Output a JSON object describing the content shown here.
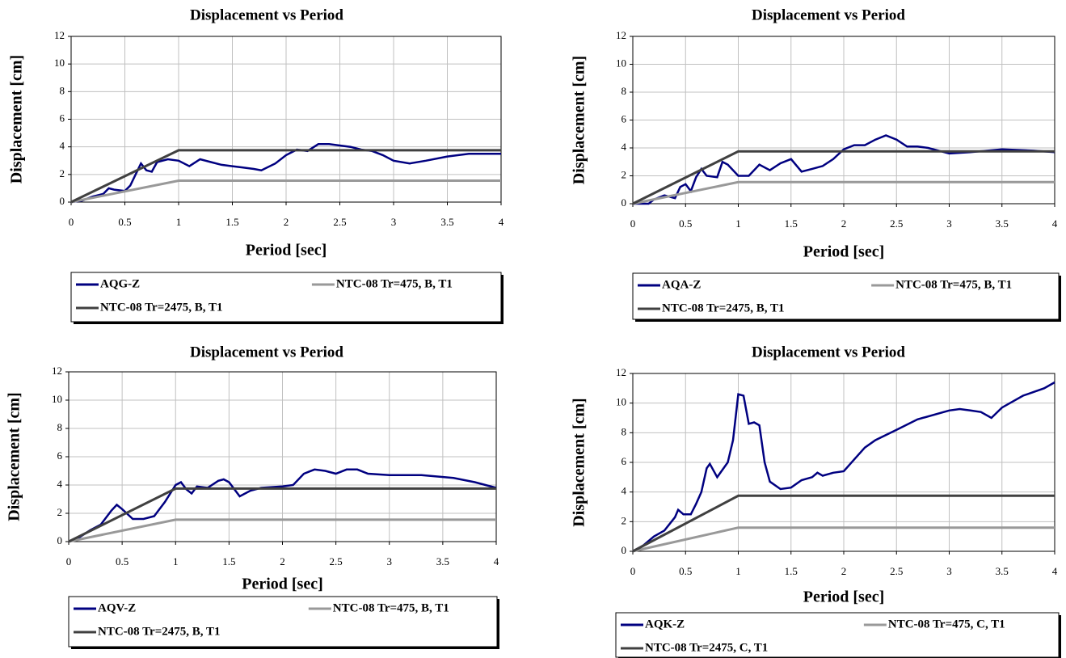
{
  "chart_data": [
    {
      "type": "line",
      "title": "Displacement vs Period",
      "xlabel": "Period [sec]",
      "ylabel": "Displacement [cm]",
      "xlim": [
        0,
        4
      ],
      "ylim": [
        0,
        12
      ],
      "xticks": [
        0,
        0.5,
        1,
        1.5,
        2,
        2.5,
        3,
        3.5,
        4
      ],
      "yticks": [
        0,
        2,
        4,
        6,
        8,
        10,
        12
      ],
      "grid": true,
      "series": [
        {
          "name": "AQG-Z",
          "color": "#000080",
          "x": [
            0,
            0.1,
            0.2,
            0.3,
            0.35,
            0.4,
            0.5,
            0.55,
            0.6,
            0.65,
            0.7,
            0.75,
            0.8,
            0.9,
            1.0,
            1.1,
            1.2,
            1.3,
            1.4,
            1.5,
            1.6,
            1.7,
            1.77,
            1.9,
            2.0,
            2.1,
            2.2,
            2.3,
            2.4,
            2.5,
            2.6,
            2.7,
            2.8,
            2.9,
            3.0,
            3.15,
            3.3,
            3.5,
            3.7,
            4.0
          ],
          "values": [
            0,
            0.1,
            0.4,
            0.6,
            1.0,
            0.9,
            0.8,
            1.2,
            2.0,
            2.8,
            2.3,
            2.2,
            2.9,
            3.1,
            3.0,
            2.6,
            3.1,
            2.9,
            2.7,
            2.6,
            2.5,
            2.4,
            2.3,
            2.8,
            3.4,
            3.8,
            3.7,
            4.2,
            4.2,
            4.1,
            4.0,
            3.8,
            3.7,
            3.4,
            3.0,
            2.8,
            3.0,
            3.3,
            3.5,
            3.5
          ]
        },
        {
          "name": "NTC-08 Tr=475, B, T1",
          "color": "#999999",
          "x": [
            0,
            1,
            4
          ],
          "values": [
            0,
            1.55,
            1.55
          ]
        },
        {
          "name": "NTC-08 Tr=2475, B, T1",
          "color": "#404040",
          "x": [
            0,
            1,
            4
          ],
          "values": [
            0,
            3.75,
            3.75
          ]
        }
      ]
    },
    {
      "type": "line",
      "title": "Displacement vs Period",
      "xlabel": "Period [sec]",
      "ylabel": "Displacement [cm]",
      "xlim": [
        0,
        4
      ],
      "ylim": [
        0,
        12
      ],
      "xticks": [
        0,
        0.5,
        1,
        1.5,
        2,
        2.5,
        3,
        3.5,
        4
      ],
      "yticks": [
        0,
        2,
        4,
        6,
        8,
        10,
        12
      ],
      "grid": true,
      "series": [
        {
          "name": "AQA-Z",
          "color": "#000080",
          "x": [
            0,
            0.15,
            0.2,
            0.3,
            0.4,
            0.45,
            0.5,
            0.55,
            0.6,
            0.65,
            0.7,
            0.8,
            0.85,
            0.9,
            1.0,
            1.1,
            1.2,
            1.3,
            1.4,
            1.5,
            1.6,
            1.7,
            1.8,
            1.9,
            2.0,
            2.1,
            2.2,
            2.3,
            2.4,
            2.5,
            2.6,
            2.7,
            2.8,
            2.9,
            3.0,
            3.2,
            3.5,
            3.8,
            4.0
          ],
          "values": [
            0,
            0,
            0.3,
            0.6,
            0.4,
            1.2,
            1.4,
            0.9,
            1.9,
            2.5,
            2.0,
            1.9,
            3.0,
            2.8,
            2.0,
            2.0,
            2.8,
            2.4,
            2.9,
            3.2,
            2.3,
            2.5,
            2.7,
            3.2,
            3.9,
            4.2,
            4.2,
            4.6,
            4.9,
            4.6,
            4.1,
            4.1,
            4.0,
            3.8,
            3.6,
            3.7,
            3.9,
            3.8,
            3.7
          ]
        },
        {
          "name": "NTC-08 Tr=475, B, T1",
          "color": "#999999",
          "x": [
            0,
            1,
            4
          ],
          "values": [
            0,
            1.55,
            1.55
          ]
        },
        {
          "name": "NTC-08 Tr=2475, B, T1",
          "color": "#404040",
          "x": [
            0,
            1,
            4
          ],
          "values": [
            0,
            3.75,
            3.75
          ]
        }
      ]
    },
    {
      "type": "line",
      "title": "Displacement vs Period",
      "xlabel": "Period [sec]",
      "ylabel": "Displacement [cm]",
      "xlim": [
        0,
        4
      ],
      "ylim": [
        0,
        12
      ],
      "xticks": [
        0,
        0.5,
        1,
        1.5,
        2,
        2.5,
        3,
        3.5,
        4
      ],
      "yticks": [
        0,
        2,
        4,
        6,
        8,
        10,
        12
      ],
      "grid": true,
      "series": [
        {
          "name": "AQV-Z",
          "color": "#000080",
          "x": [
            0,
            0.1,
            0.2,
            0.3,
            0.4,
            0.45,
            0.5,
            0.6,
            0.7,
            0.8,
            0.9,
            1.0,
            1.05,
            1.1,
            1.15,
            1.2,
            1.3,
            1.4,
            1.45,
            1.5,
            1.6,
            1.7,
            1.8,
            2.0,
            2.1,
            2.2,
            2.3,
            2.4,
            2.5,
            2.6,
            2.7,
            2.8,
            3.0,
            3.3,
            3.6,
            3.8,
            4.0
          ],
          "values": [
            0,
            0.3,
            0.8,
            1.2,
            2.2,
            2.6,
            2.3,
            1.6,
            1.6,
            1.8,
            2.8,
            4.0,
            4.2,
            3.7,
            3.4,
            3.9,
            3.8,
            4.3,
            4.4,
            4.2,
            3.2,
            3.6,
            3.8,
            3.9,
            4.0,
            4.8,
            5.1,
            5.0,
            4.8,
            5.1,
            5.1,
            4.8,
            4.7,
            4.7,
            4.5,
            4.2,
            3.8
          ]
        },
        {
          "name": "NTC-08 Tr=475, B, T1",
          "color": "#999999",
          "x": [
            0,
            1,
            4
          ],
          "values": [
            0,
            1.55,
            1.55
          ]
        },
        {
          "name": "NTC-08 Tr=2475, B, T1",
          "color": "#404040",
          "x": [
            0,
            1,
            4
          ],
          "values": [
            0,
            3.75,
            3.75
          ]
        }
      ]
    },
    {
      "type": "line",
      "title": "Displacement vs Period",
      "xlabel": "Period [sec]",
      "ylabel": "Displacement [cm]",
      "xlim": [
        0,
        4
      ],
      "ylim": [
        0,
        12
      ],
      "xticks": [
        0,
        0.5,
        1,
        1.5,
        2,
        2.5,
        3,
        3.5,
        4
      ],
      "yticks": [
        0,
        2,
        4,
        6,
        8,
        10,
        12
      ],
      "grid": true,
      "series": [
        {
          "name": "AQK-Z",
          "color": "#000080",
          "x": [
            0,
            0.1,
            0.2,
            0.3,
            0.4,
            0.43,
            0.48,
            0.55,
            0.6,
            0.65,
            0.7,
            0.73,
            0.8,
            0.9,
            0.95,
            1.0,
            1.05,
            1.1,
            1.15,
            1.2,
            1.25,
            1.3,
            1.4,
            1.5,
            1.6,
            1.7,
            1.75,
            1.8,
            1.9,
            2.0,
            2.1,
            2.2,
            2.3,
            2.5,
            2.7,
            3.0,
            3.1,
            3.2,
            3.3,
            3.4,
            3.5,
            3.7,
            3.9,
            4.0
          ],
          "values": [
            0,
            0.4,
            1.0,
            1.4,
            2.3,
            2.8,
            2.5,
            2.5,
            3.2,
            4.0,
            5.6,
            5.9,
            5.0,
            6.0,
            7.5,
            10.6,
            10.5,
            8.6,
            8.7,
            8.5,
            6.0,
            4.7,
            4.2,
            4.3,
            4.8,
            5.0,
            5.3,
            5.1,
            5.3,
            5.4,
            6.2,
            7.0,
            7.5,
            8.2,
            8.9,
            9.5,
            9.6,
            9.5,
            9.4,
            9.0,
            9.7,
            10.5,
            11.0,
            11.4
          ]
        },
        {
          "name": "NTC-08 Tr=475, C, T1",
          "color": "#999999",
          "x": [
            0,
            1,
            4
          ],
          "values": [
            0,
            1.6,
            1.6
          ]
        },
        {
          "name": "NTC-08 Tr=2475, C, T1",
          "color": "#404040",
          "x": [
            0,
            1,
            4
          ],
          "values": [
            0,
            3.75,
            3.75
          ]
        }
      ]
    }
  ]
}
